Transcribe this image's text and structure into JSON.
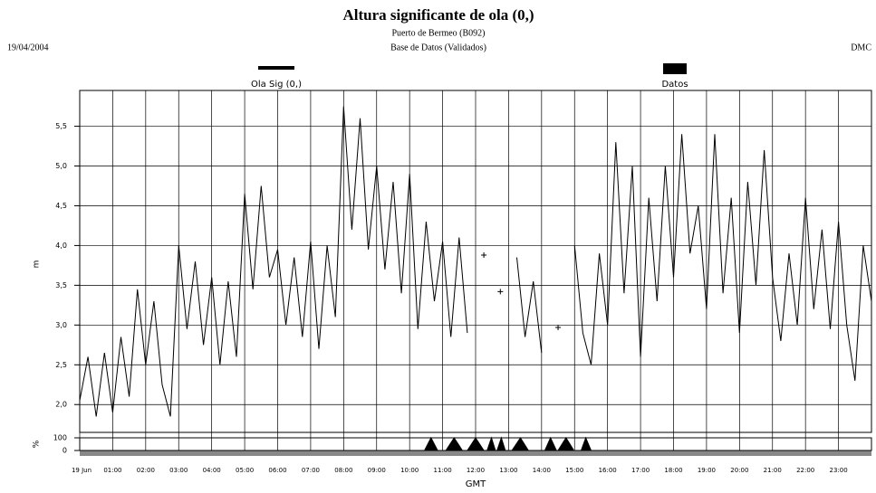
{
  "chart_data": [
    {
      "type": "line",
      "title": "Altura significante de ola (0,)",
      "subtitle": [
        "Puerto de Bermeo (B092)",
        "Base de Datos (Validados)"
      ],
      "date": "19/04/2004",
      "source": "DMC",
      "ylabel": "m",
      "xlabel": "GMT",
      "xlim": [
        0,
        24
      ],
      "xticks": [
        {
          "value": 0,
          "label": "19 Jun"
        },
        {
          "value": 1,
          "label": "01:00"
        },
        {
          "value": 2,
          "label": "02:00"
        },
        {
          "value": 3,
          "label": "03:00"
        },
        {
          "value": 4,
          "label": "04:00"
        },
        {
          "value": 5,
          "label": "05:00"
        },
        {
          "value": 6,
          "label": "06:00"
        },
        {
          "value": 7,
          "label": "07:00"
        },
        {
          "value": 8,
          "label": "08:00"
        },
        {
          "value": 9,
          "label": "09:00"
        },
        {
          "value": 10,
          "label": "10:00"
        },
        {
          "value": 11,
          "label": "11:00"
        },
        {
          "value": 12,
          "label": "12:00"
        },
        {
          "value": 13,
          "label": "13:00"
        },
        {
          "value": 14,
          "label": "14:00"
        },
        {
          "value": 15,
          "label": "15:00"
        },
        {
          "value": 16,
          "label": "16:00"
        },
        {
          "value": 17,
          "label": "17:00"
        },
        {
          "value": 18,
          "label": "18:00"
        },
        {
          "value": 19,
          "label": "19:00"
        },
        {
          "value": 20,
          "label": "20:00"
        },
        {
          "value": 21,
          "label": "21:00"
        },
        {
          "value": 22,
          "label": "22:00"
        },
        {
          "value": 23,
          "label": "23:00"
        }
      ],
      "ylim": [
        1.65,
        5.95
      ],
      "yticks": [
        {
          "value": 2,
          "label": "2,0"
        },
        {
          "value": 2.5,
          "label": "2,5"
        },
        {
          "value": 3,
          "label": "3,0"
        },
        {
          "value": 3.5,
          "label": "3,5"
        },
        {
          "value": 4,
          "label": "4,0"
        },
        {
          "value": 4.5,
          "label": "4,5"
        },
        {
          "value": 5,
          "label": "5,0"
        },
        {
          "value": 5.5,
          "label": "5,5"
        }
      ],
      "grid": true,
      "x": [
        0,
        0.25,
        0.5,
        0.75,
        1,
        1.25,
        1.5,
        1.75,
        2,
        2.25,
        2.5,
        2.75,
        3,
        3.25,
        3.5,
        3.75,
        4,
        4.25,
        4.5,
        4.75,
        5,
        5.25,
        5.5,
        5.75,
        6,
        6.25,
        6.5,
        6.75,
        7,
        7.25,
        7.5,
        7.75,
        8,
        8.25,
        8.5,
        8.75,
        9,
        9.25,
        9.5,
        9.75,
        10,
        10.25,
        10.5,
        10.75,
        11,
        11.25,
        11.5,
        11.75,
        12,
        12.25,
        12.5,
        12.75,
        13,
        13.25,
        13.5,
        13.75,
        14,
        14.25,
        14.5,
        14.75,
        15,
        15.25,
        15.5,
        15.75,
        16,
        16.25,
        16.5,
        16.75,
        17,
        17.25,
        17.5,
        17.75,
        18,
        18.25,
        18.5,
        18.75,
        19,
        19.25,
        19.5,
        19.75,
        20,
        20.25,
        20.5,
        20.75,
        21,
        21.25,
        21.5,
        21.75,
        22,
        22.25,
        22.5,
        22.75,
        23,
        23.25,
        23.5,
        23.75,
        24
      ],
      "series": [
        {
          "name": "Ola Sig (0,)",
          "color": "#000000",
          "values": [
            2.05,
            2.6,
            1.85,
            2.65,
            1.9,
            2.85,
            2.1,
            3.45,
            2.5,
            3.3,
            2.25,
            1.85,
            4.0,
            2.95,
            3.8,
            2.75,
            3.6,
            2.5,
            3.55,
            2.6,
            4.65,
            3.45,
            4.75,
            3.6,
            3.95,
            3.0,
            3.85,
            2.85,
            4.05,
            2.7,
            4.0,
            3.1,
            5.75,
            4.2,
            5.6,
            3.95,
            5.0,
            3.7,
            4.8,
            3.4,
            4.9,
            2.95,
            4.3,
            3.3,
            4.05,
            2.85,
            4.1,
            2.9,
            null,
            3.88,
            null,
            3.42,
            null,
            3.85,
            2.85,
            3.55,
            2.65,
            null,
            2.97,
            null,
            4.0,
            2.9,
            2.5,
            3.9,
            3.0,
            5.3,
            3.4,
            5.0,
            2.6,
            4.6,
            3.3,
            5.0,
            3.6,
            5.4,
            3.9,
            4.5,
            3.2,
            5.4,
            3.4,
            4.6,
            2.9,
            4.8,
            3.5,
            5.2,
            3.6,
            2.8,
            3.9,
            3.0,
            4.6,
            3.2,
            4.2,
            2.95,
            4.3,
            3.0,
            2.3,
            4.0,
            3.3
          ]
        }
      ]
    },
    {
      "type": "area",
      "ylabel": "%",
      "ylim": [
        0,
        100
      ],
      "yticks": [
        0,
        100
      ],
      "x": [
        10.45,
        10.65,
        10.85,
        11.1,
        11.35,
        11.6,
        11.75,
        12.0,
        12.25,
        12.35,
        12.48,
        12.6,
        12.65,
        12.78,
        12.9,
        13.1,
        13.36,
        13.6,
        14.1,
        14.27,
        14.45,
        14.5,
        14.74,
        14.98,
        15.2,
        15.34,
        15.5
      ],
      "series": [
        {
          "name": "Datos",
          "color": "#000000",
          "values": [
            0,
            100,
            0,
            0,
            100,
            0,
            0,
            100,
            0,
            0,
            100,
            0,
            0,
            100,
            0,
            0,
            100,
            0,
            0,
            100,
            0,
            0,
            100,
            0,
            0,
            100,
            0
          ]
        }
      ]
    }
  ]
}
